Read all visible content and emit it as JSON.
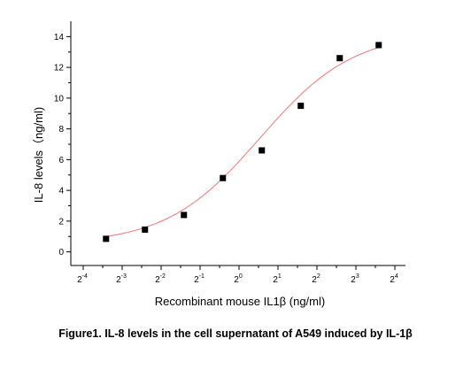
{
  "chart_data": {
    "type": "scatter",
    "xlabel": "Recombinant mouse IL1β (ng/ml)",
    "ylabel": "IL-8 levels（ng/ml)",
    "x_scale": "log2",
    "xlim": [
      0.0625,
      16
    ],
    "ylim": [
      -1,
      15
    ],
    "x_ticks": [
      {
        "base": "2",
        "exp": "-4",
        "value": 0.0625
      },
      {
        "base": "2",
        "exp": "-3",
        "value": 0.125
      },
      {
        "base": "2",
        "exp": "-2",
        "value": 0.25
      },
      {
        "base": "2",
        "exp": "-1",
        "value": 0.5
      },
      {
        "base": "2",
        "exp": "0",
        "value": 1
      },
      {
        "base": "2",
        "exp": "1",
        "value": 2
      },
      {
        "base": "2",
        "exp": "2",
        "value": 4
      },
      {
        "base": "2",
        "exp": "3",
        "value": 8
      },
      {
        "base": "2",
        "exp": "4",
        "value": 16
      }
    ],
    "y_ticks": [
      0,
      2,
      4,
      6,
      8,
      10,
      12,
      14
    ],
    "grid": false,
    "marker_color": "#000000",
    "fit_color": "#e8787a",
    "points": [
      {
        "x": 0.0938,
        "y": 0.85
      },
      {
        "x": 0.1875,
        "y": 1.45
      },
      {
        "x": 0.375,
        "y": 2.4
      },
      {
        "x": 0.75,
        "y": 4.8
      },
      {
        "x": 1.5,
        "y": 6.6
      },
      {
        "x": 3,
        "y": 9.5
      },
      {
        "x": 6,
        "y": 12.6
      },
      {
        "x": 12,
        "y": 13.45
      }
    ],
    "fit": {
      "type": "sigmoid",
      "bottom": 0.5,
      "top": 14.3,
      "ec50": 1.45,
      "hill": 1.2
    }
  },
  "caption": "Figure1. IL-8 levels in the cell supernatant of A549 induced by IL-1β"
}
